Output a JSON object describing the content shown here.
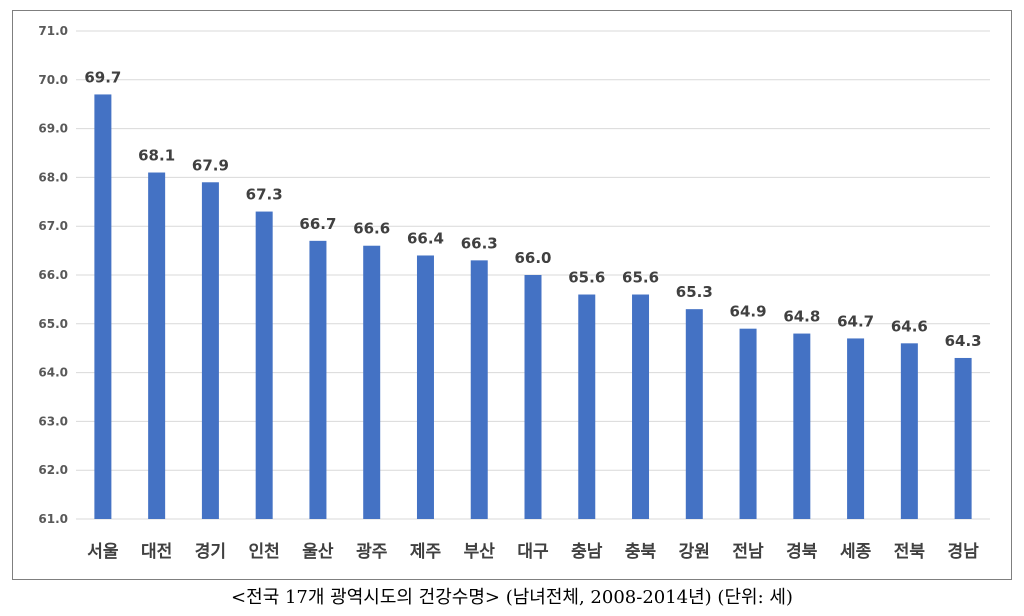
{
  "chart_data": {
    "type": "bar",
    "categories": [
      "서울",
      "대전",
      "경기",
      "인천",
      "울산",
      "광주",
      "제주",
      "부산",
      "대구",
      "충남",
      "충북",
      "강원",
      "전남",
      "경북",
      "세종",
      "전북",
      "경남"
    ],
    "values": [
      69.7,
      68.1,
      67.9,
      67.3,
      66.7,
      66.6,
      66.4,
      66.3,
      66.0,
      65.6,
      65.6,
      65.3,
      64.9,
      64.8,
      64.7,
      64.6,
      64.3
    ],
    "data_labels": [
      "69.7",
      "68.1",
      "67.9",
      "67.3",
      "66.7",
      "66.6",
      "66.4",
      "66.3",
      "66.0",
      "65.6",
      "65.6",
      "65.3",
      "64.9",
      "64.8",
      "64.7",
      "64.6",
      "64.3"
    ],
    "yticks": [
      "61.0",
      "62.0",
      "63.0",
      "64.0",
      "65.0",
      "66.0",
      "67.0",
      "68.0",
      "69.0",
      "70.0",
      "71.0"
    ],
    "ylim": [
      61,
      71
    ],
    "grid": true,
    "legend": "none",
    "bar_color": "#4472c4"
  },
  "caption": "<전국 17개 광역시도의 건강수명> (남녀전체, 2008-2014년) (단위: 세)"
}
